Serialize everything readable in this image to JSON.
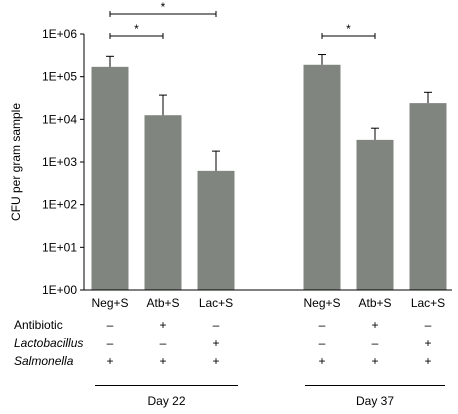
{
  "chart_data": {
    "type": "bar",
    "ylabel": "CFU per gram sample",
    "yscale": "log",
    "ylim": [
      1,
      1000000
    ],
    "yticks": [
      "1E+00",
      "1E+01",
      "1E+02",
      "1E+03",
      "1E+04",
      "1E+05",
      "1E+06"
    ],
    "bar_color": "#80867f",
    "groups": [
      {
        "label": "Day 22",
        "bars": [
          {
            "category": "Neg+S",
            "value": 170000,
            "error_upper": 300000
          },
          {
            "category": "Atb+S",
            "value": 12500,
            "error_upper": 37000
          },
          {
            "category": "Lac+S",
            "value": 620,
            "error_upper": 1800
          }
        ]
      },
      {
        "label": "Day 37",
        "bars": [
          {
            "category": "Neg+S",
            "value": 190000,
            "error_upper": 330000
          },
          {
            "category": "Atb+S",
            "value": 3300,
            "error_upper": 6200
          },
          {
            "category": "Lac+S",
            "value": 24000,
            "error_upper": 43000
          }
        ]
      }
    ],
    "significance": [
      {
        "from": "Day 22 Neg+S",
        "to": "Day 22 Lac+S",
        "label": "*"
      },
      {
        "from": "Day 22 Neg+S",
        "to": "Day 22 Atb+S",
        "label": "*"
      },
      {
        "from": "Day 37 Neg+S",
        "to": "Day 37 Atb+S",
        "label": "*"
      }
    ]
  },
  "conditions": {
    "rows": [
      {
        "label": "Antibiotic",
        "italic": false,
        "values": [
          "–",
          "+",
          "–",
          "–",
          "+",
          "–"
        ]
      },
      {
        "label": "Lactobacillus",
        "italic": true,
        "values": [
          "–",
          "–",
          "+",
          "–",
          "–",
          "+"
        ]
      },
      {
        "label": "Salmonella",
        "italic": true,
        "values": [
          "+",
          "+",
          "+",
          "+",
          "+",
          "+"
        ]
      }
    ]
  },
  "days": [
    "Day 22",
    "Day 37"
  ]
}
